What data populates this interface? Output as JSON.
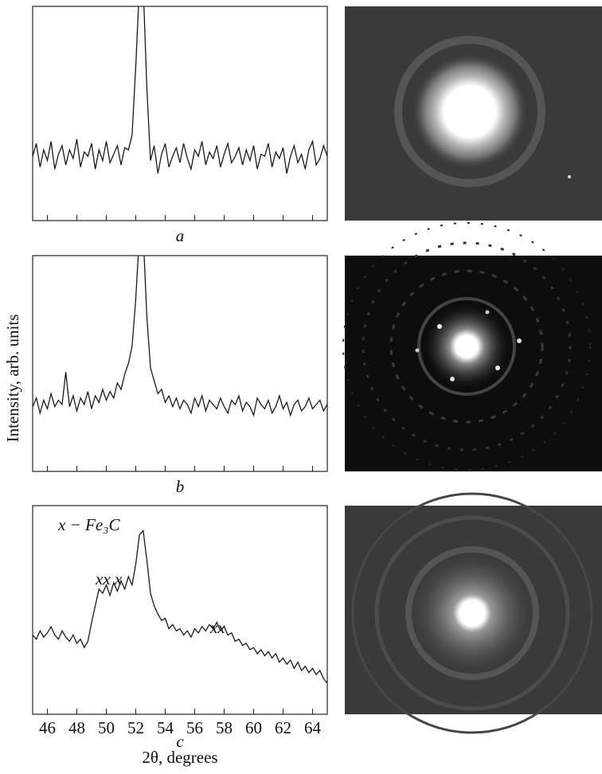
{
  "y_label": "Intensity, arb. units",
  "chart_data": [
    {
      "type": "line",
      "caption": "a",
      "color": "#1a1a1a",
      "xlim": [
        45,
        65
      ],
      "ylim": [
        0,
        100
      ],
      "x": [
        45,
        45.25,
        45.5,
        45.75,
        46,
        46.25,
        46.5,
        46.75,
        47,
        47.25,
        47.5,
        47.75,
        48,
        48.25,
        48.5,
        48.75,
        49,
        49.25,
        49.5,
        49.75,
        50,
        50.25,
        50.5,
        50.75,
        51,
        51.25,
        51.5,
        51.75,
        52,
        52.25,
        52.5,
        52.75,
        53,
        53.25,
        53.5,
        53.75,
        54,
        54.25,
        54.5,
        54.75,
        55,
        55.25,
        55.5,
        55.75,
        56,
        56.25,
        56.5,
        56.75,
        57,
        57.25,
        57.5,
        57.75,
        58,
        58.25,
        58.5,
        58.75,
        59,
        59.25,
        59.5,
        59.75,
        60,
        60.25,
        60.5,
        60.75,
        61,
        61.25,
        61.5,
        61.75,
        62,
        62.25,
        62.5,
        62.75,
        63,
        63.25,
        63.5,
        63.75,
        64,
        64.25,
        64.5,
        64.75,
        65
      ],
      "values": [
        30,
        36,
        25,
        33,
        28,
        37,
        24,
        31,
        35,
        26,
        33,
        29,
        38,
        25,
        32,
        30,
        36,
        24,
        33,
        28,
        37,
        27,
        31,
        35,
        26,
        34,
        33,
        40,
        72,
        110,
        110,
        62,
        28,
        35,
        22,
        31,
        36,
        25,
        30,
        34,
        27,
        36,
        29,
        24,
        33,
        30,
        37,
        26,
        32,
        29,
        35,
        25,
        31,
        36,
        27,
        30,
        34,
        26,
        33,
        28,
        35,
        24,
        31,
        30,
        36,
        25,
        32,
        29,
        34,
        22,
        30,
        35,
        27,
        31,
        24,
        33,
        37,
        26,
        29,
        35,
        30
      ]
    },
    {
      "type": "line",
      "caption": "b",
      "color": "#1a1a1a",
      "xlim": [
        45,
        65
      ],
      "ylim": [
        0,
        100
      ],
      "x": [
        45,
        45.25,
        45.5,
        45.75,
        46,
        46.25,
        46.5,
        46.75,
        47,
        47.25,
        47.5,
        47.75,
        48,
        48.25,
        48.5,
        48.75,
        49,
        49.25,
        49.5,
        49.75,
        50,
        50.25,
        50.5,
        50.75,
        51,
        51.25,
        51.5,
        51.75,
        52,
        52.25,
        52.5,
        52.75,
        53,
        53.25,
        53.5,
        53.75,
        54,
        54.25,
        54.5,
        54.75,
        55,
        55.25,
        55.5,
        55.75,
        56,
        56.25,
        56.5,
        56.75,
        57,
        57.25,
        57.5,
        57.75,
        58,
        58.25,
        58.5,
        58.75,
        59,
        59.25,
        59.5,
        59.75,
        60,
        60.25,
        60.5,
        60.75,
        61,
        61.25,
        61.5,
        61.75,
        62,
        62.25,
        62.5,
        62.75,
        63,
        63.25,
        63.5,
        63.75,
        64,
        64.25,
        64.5,
        64.75,
        65
      ],
      "values": [
        30,
        34,
        27,
        33,
        29,
        36,
        30,
        33,
        31,
        46,
        30,
        35,
        28,
        34,
        31,
        37,
        29,
        35,
        32,
        38,
        33,
        37,
        34,
        41,
        38,
        45,
        50,
        58,
        80,
        110,
        110,
        72,
        48,
        42,
        36,
        38,
        32,
        35,
        30,
        34,
        29,
        33,
        31,
        27,
        34,
        30,
        35,
        28,
        33,
        31,
        29,
        34,
        30,
        27,
        33,
        31,
        35,
        28,
        32,
        30,
        26,
        34,
        31,
        29,
        33,
        27,
        30,
        35,
        29,
        32,
        26,
        31,
        33,
        28,
        30,
        34,
        29,
        31,
        33,
        28,
        31
      ]
    },
    {
      "type": "line",
      "caption": "c",
      "color": "#1a1a1a",
      "xlim": [
        45,
        65
      ],
      "ylim": [
        0,
        100
      ],
      "xticks": [
        46,
        48,
        50,
        52,
        54,
        56,
        58,
        60,
        62,
        64
      ],
      "x_label": "2θ, degrees",
      "annotations": [
        "x − Fe₃C",
        "xx x",
        "xx"
      ],
      "x": [
        45,
        45.25,
        45.5,
        45.75,
        46,
        46.25,
        46.5,
        46.75,
        47,
        47.25,
        47.5,
        47.75,
        48,
        48.25,
        48.5,
        48.75,
        49,
        49.25,
        49.5,
        49.75,
        50,
        50.25,
        50.5,
        50.75,
        51,
        51.25,
        51.5,
        51.75,
        52,
        52.25,
        52.5,
        52.75,
        53,
        53.25,
        53.5,
        53.75,
        54,
        54.25,
        54.5,
        54.75,
        55,
        55.25,
        55.5,
        55.75,
        56,
        56.25,
        56.5,
        56.75,
        57,
        57.25,
        57.5,
        57.75,
        58,
        58.25,
        58.5,
        58.75,
        59,
        59.25,
        59.5,
        59.75,
        60,
        60.25,
        60.5,
        60.75,
        61,
        61.25,
        61.5,
        61.75,
        62,
        62.25,
        62.5,
        62.75,
        63,
        63.25,
        63.5,
        63.75,
        64,
        64.25,
        64.5,
        64.75,
        65
      ],
      "values": [
        38,
        36,
        40,
        37,
        39,
        42,
        38,
        36,
        40,
        37,
        35,
        38,
        34,
        36,
        32,
        35,
        44,
        52,
        60,
        58,
        62,
        57,
        63,
        59,
        64,
        60,
        66,
        62,
        72,
        86,
        88,
        74,
        58,
        52,
        48,
        45,
        46,
        41,
        43,
        40,
        41,
        38,
        40,
        37,
        41,
        39,
        42,
        40,
        43,
        41,
        44,
        40,
        42,
        38,
        39,
        35,
        36,
        33,
        34,
        31,
        32,
        29,
        31,
        28,
        30,
        27,
        29,
        25,
        27,
        24,
        26,
        22,
        25,
        21,
        23,
        20,
        22,
        19,
        21,
        17,
        15
      ]
    }
  ]
}
